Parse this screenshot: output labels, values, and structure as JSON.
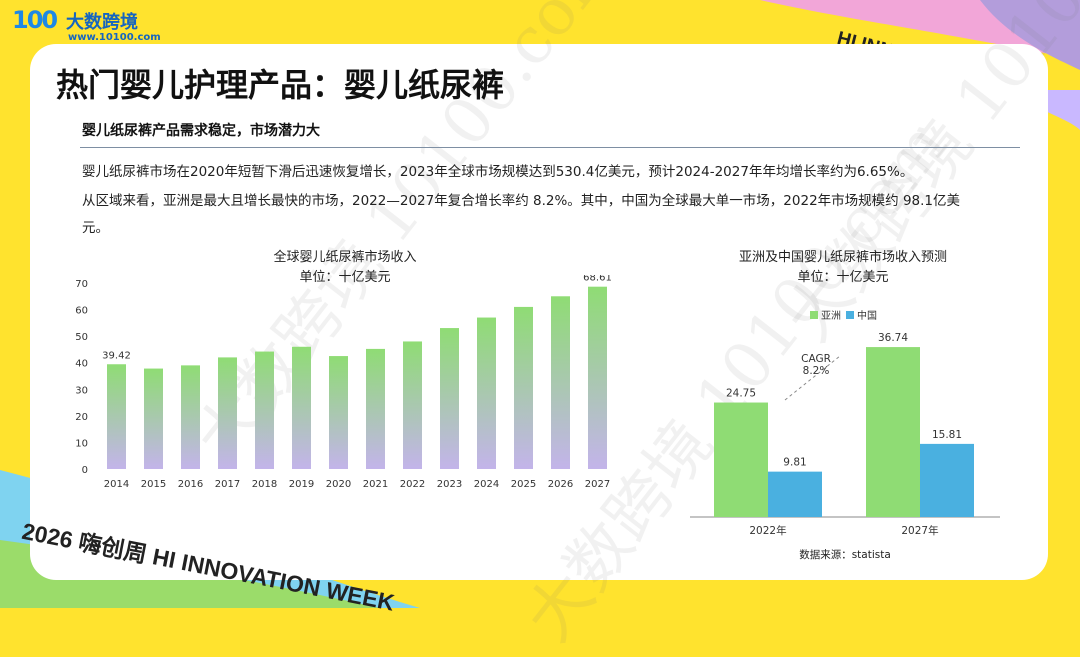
{
  "logo": {
    "name": "大数跨境",
    "url": "www.10100.com",
    "mark": "100"
  },
  "banner": {
    "top": "HI INNOVATION WEEK",
    "bottom": "2026 嗨创周 HI INNOVATION WEEK"
  },
  "watermark": "大数跨境 10100.com",
  "page": {
    "title": "热门婴儿护理产品：婴儿纸尿裤",
    "subtitle": "婴儿纸尿裤产品需求稳定，市场潜力大",
    "paragraph_lines": [
      "婴儿纸尿裤市场在2020年短暂下滑后迅速恢复增长，2023年全球市场规模达到530.4亿美元，预计2024-2027年年均增长率约为6.65%。",
      "从区域来看，亚洲是最大且增长最快的市场，2022—2027年复合增长率约 8.2%。其中，中国为全球最大单一市场，2022年市场规模约 98.1亿美",
      "元。"
    ]
  },
  "colors": {
    "accent_green": "#8fd68a",
    "bar_green": "#8fdc74",
    "bar_blue": "#4ab0e0",
    "bar_purple": "#c3b4ea",
    "background": "#ffe32e"
  },
  "chart_data": [
    {
      "type": "bar",
      "title": "全球婴儿纸尿裤市场收入",
      "subtitle": "单位：十亿美元",
      "categories": [
        "2014",
        "2015",
        "2016",
        "2017",
        "2018",
        "2019",
        "2020",
        "2021",
        "2022",
        "2023",
        "2024",
        "2025",
        "2026",
        "2027"
      ],
      "values": [
        39.42,
        37.8,
        39.0,
        42.0,
        44.2,
        46.0,
        42.5,
        45.2,
        48.0,
        53.04,
        57.0,
        61.0,
        65.0,
        68.61
      ],
      "data_labels": {
        "0": "39.42",
        "13": "68.61"
      },
      "ylim": [
        0,
        70
      ],
      "yticks": [
        0,
        10,
        20,
        30,
        40,
        50,
        60,
        70
      ],
      "grid": false
    },
    {
      "type": "bar",
      "title": "亚洲及中国婴儿纸尿裤市场收入预测",
      "subtitle": "单位：十亿美元",
      "categories": [
        "2022年",
        "2027年"
      ],
      "series": [
        {
          "name": "亚洲",
          "values": [
            24.75,
            36.74
          ]
        },
        {
          "name": "中国",
          "values": [
            9.81,
            15.81
          ]
        }
      ],
      "annotation": [
        "CAGR",
        "8.2%"
      ],
      "legend": "top",
      "source": "数据来源：statista",
      "ylim": [
        0,
        40
      ]
    }
  ]
}
